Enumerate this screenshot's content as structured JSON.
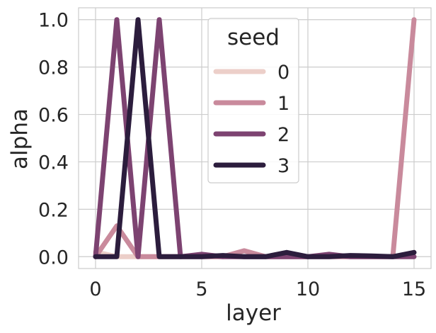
{
  "chart_data": {
    "type": "line",
    "xlabel": "layer",
    "ylabel": "alpha",
    "xlim": [
      -0.8,
      15.8
    ],
    "ylim": [
      -0.05,
      1.05
    ],
    "xticks": [
      0,
      5,
      10,
      15
    ],
    "yticks": [
      0.0,
      0.2,
      0.4,
      0.6,
      0.8,
      1.0
    ],
    "xtick_labels": [
      "0",
      "5",
      "10",
      "15"
    ],
    "ytick_labels": [
      "0.0",
      "0.2",
      "0.4",
      "0.6",
      "0.8",
      "1.0"
    ],
    "grid": true,
    "legend": {
      "title": "seed",
      "placement": "top-center"
    },
    "x": [
      0,
      1,
      2,
      3,
      4,
      5,
      6,
      7,
      8,
      9,
      10,
      11,
      12,
      13,
      14,
      15
    ],
    "series": [
      {
        "name": "0",
        "color": "#eccfc9",
        "values": [
          0.02,
          0.0,
          0.0,
          0.0,
          0.0,
          0.0,
          0.0,
          0.0,
          0.0,
          0.0,
          0.0,
          0.0,
          0.0,
          0.0,
          0.0,
          0.0
        ]
      },
      {
        "name": "1",
        "color": "#c98a9c",
        "values": [
          0.0,
          0.13,
          0.0,
          0.0,
          0.0,
          0.0,
          0.0,
          0.025,
          0.0,
          0.0,
          0.0,
          0.0,
          0.0,
          0.0,
          0.0,
          1.0
        ]
      },
      {
        "name": "2",
        "color": "#7d4371",
        "values": [
          0.0,
          1.0,
          0.0,
          1.0,
          0.0,
          0.01,
          0.0,
          0.0,
          0.0,
          0.0,
          0.0,
          0.01,
          0.0,
          0.0,
          0.0,
          0.0
        ]
      },
      {
        "name": "3",
        "color": "#2c1d3d",
        "values": [
          0.0,
          0.0,
          1.0,
          0.0,
          0.0,
          0.0,
          0.005,
          0.0,
          0.0,
          0.018,
          0.0,
          0.0,
          0.005,
          0.003,
          0.0,
          0.018
        ]
      }
    ]
  }
}
